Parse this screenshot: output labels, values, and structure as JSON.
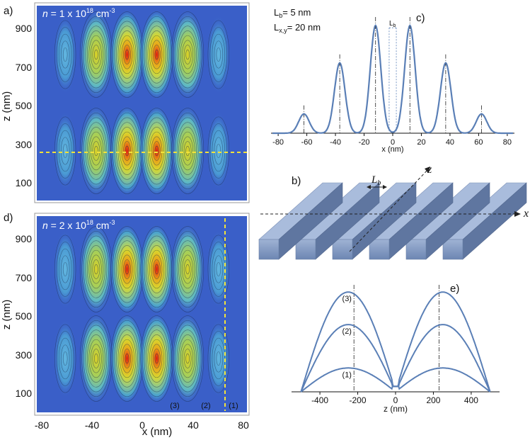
{
  "panel_labels": {
    "a": "a)",
    "b": "b)",
    "c": "c)",
    "d": "d)",
    "e": "e)"
  },
  "panel_a": {
    "density_prefix": "n",
    "density_value": " = 1 x 10",
    "density_exp": "18",
    "density_unit": " cm",
    "density_unit_exp": "-3",
    "ylabel": "z (nm)",
    "yticks": [
      "900",
      "700",
      "500",
      "300",
      "100"
    ]
  },
  "panel_d": {
    "density_prefix": "n",
    "density_value": " = 2 x 10",
    "density_exp": "18",
    "density_unit": " cm",
    "density_unit_exp": "-3",
    "ylabel": "z (nm)",
    "xlabel": "x (nm)",
    "yticks": [
      "900",
      "700",
      "500",
      "300",
      "100"
    ],
    "xticks": [
      "-80",
      "-40",
      "0",
      "40",
      "80"
    ],
    "markers": [
      "(3)",
      "(2)",
      "(1)"
    ]
  },
  "panel_b": {
    "lb": "L",
    "lb_sub": "b",
    "z_axis": "z",
    "x_axis": "x"
  },
  "colors": {
    "field_bg": "#3a5fc8",
    "curve": "#5a7fb6",
    "cut_line": "#f2e23a",
    "bar_face": "#8fa4c8",
    "bar_top": "#a9bcdc",
    "bar_side": "#5f76a0"
  },
  "chart_data": [
    {
      "type": "line",
      "panel": "c",
      "title": "",
      "annotations": [
        {
          "text": "L",
          "sub": "b",
          "tail": "= 5 nm"
        },
        {
          "text": "L",
          "sub": "x,y",
          "tail": "= 20 nm"
        }
      ],
      "gap_label": {
        "text": "L",
        "sub": "b"
      },
      "xlabel": "x (nm)",
      "ylabel": "",
      "xlim": [
        -85,
        85
      ],
      "ylim": [
        0,
        1
      ],
      "xticks": [
        "-80",
        "-60",
        "-40",
        "-20",
        "0",
        "20",
        "40",
        "60",
        "80"
      ],
      "peaks": [
        {
          "x": -62,
          "y": 0.17
        },
        {
          "x": -37,
          "y": 0.62
        },
        {
          "x": -12,
          "y": 0.95
        },
        {
          "x": 12,
          "y": 0.95
        },
        {
          "x": 37,
          "y": 0.62
        },
        {
          "x": 62,
          "y": 0.17
        }
      ],
      "barrier_edges": [
        -2.5,
        2.5
      ]
    },
    {
      "type": "line",
      "panel": "e",
      "title": "",
      "xlabel": "z (nm)",
      "ylabel": "",
      "xlim": [
        -550,
        550
      ],
      "ylim": [
        0,
        1
      ],
      "xticks": [
        "-400",
        "-200",
        "0",
        "200",
        "400"
      ],
      "peak_positions": [
        -220,
        230
      ],
      "series": [
        {
          "name": "(1)",
          "peak": 0.22
        },
        {
          "name": "(2)",
          "peak": 0.62
        },
        {
          "name": "(3)",
          "peak": 0.92
        }
      ]
    }
  ]
}
